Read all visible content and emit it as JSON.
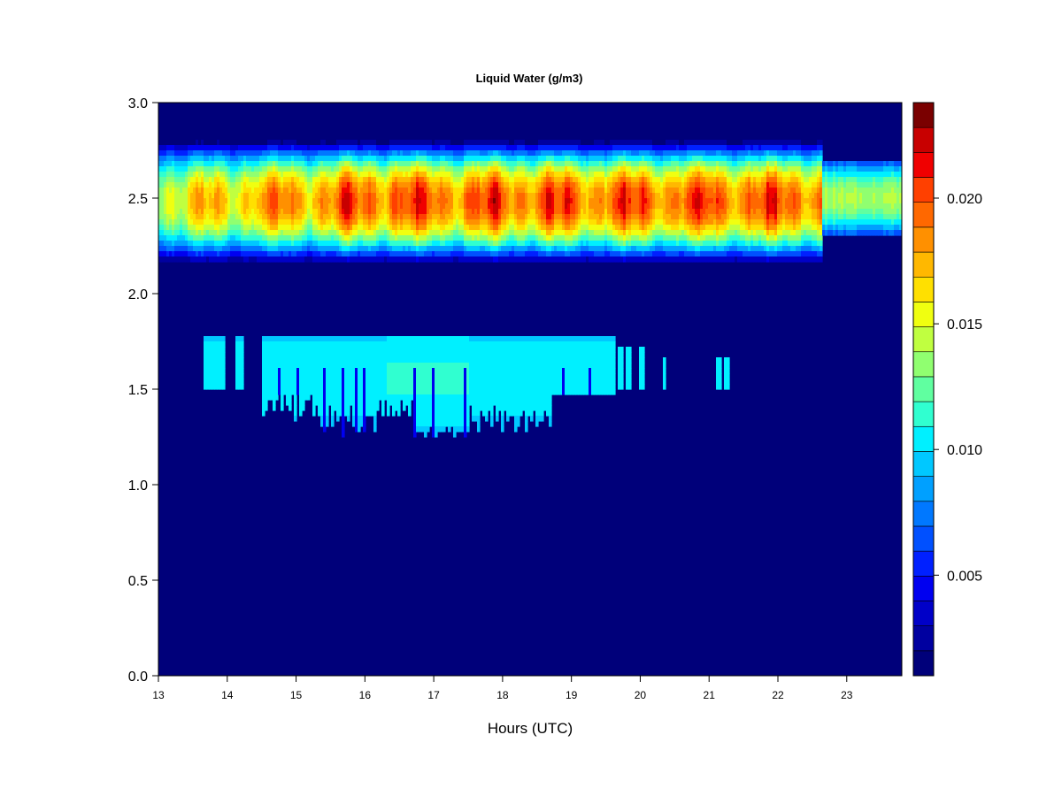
{
  "chart_data": {
    "type": "heatmap",
    "title": "Liquid Water (g/m3)",
    "xlabel": "Hours (UTC)",
    "ylabel": "",
    "xlim": [
      13,
      23.8
    ],
    "ylim": [
      0,
      3
    ],
    "x_ticks": [
      "13",
      "14",
      "15",
      "16",
      "17",
      "18",
      "19",
      "20",
      "21",
      "22",
      "23"
    ],
    "y_ticks": [
      "0.0",
      "0.5",
      "1.0",
      "1.5",
      "2.0",
      "2.5",
      "3.0"
    ],
    "colorbar": {
      "min": 0.001,
      "max": 0.0238,
      "levels": 23,
      "ticks": [
        "0.005",
        "0.010",
        "0.015",
        "0.020"
      ],
      "colors": [
        "#00007a",
        "#0000a0",
        "#0000c8",
        "#0000f0",
        "#0020ff",
        "#0050ff",
        "#0078ff",
        "#00a0ff",
        "#00c8ff",
        "#00f0ff",
        "#30ffd0",
        "#60ffa0",
        "#90ff70",
        "#c0ff40",
        "#f0ff10",
        "#ffe000",
        "#ffb800",
        "#ff9000",
        "#ff6800",
        "#ff4000",
        "#f00000",
        "#c80000",
        "#7a0000"
      ]
    },
    "features": [
      {
        "label": "upper cloud layer",
        "x_range": [
          13,
          23.8
        ],
        "height_km": [
          2.05,
          2.7
        ],
        "peak_height_km": 2.48,
        "peak_g_m3": 0.022
      },
      {
        "label": "lower cloud layer",
        "x_range": [
          13.65,
          21.7
        ],
        "height_km": [
          1.25,
          1.77
        ],
        "peak_g_m3": 0.0115
      }
    ]
  }
}
